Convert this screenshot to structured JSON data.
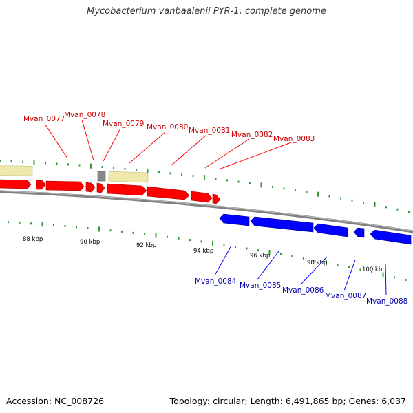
{
  "title": "Mycobacterium vanbaalenii PYR-1, complete genome",
  "accession": "Accession: NC_008726",
  "summary": "Topology: circular; Length: 6,491,865 bp; Genes: 6,037",
  "colors": {
    "forward_gene": "#ff0000",
    "reverse_gene": "#0000ff",
    "forward_label": "#cc0000",
    "reverse_label": "#0000aa",
    "feature_box": "#eee8aa",
    "backbone": "#808080",
    "tick_mark": "#339933"
  },
  "forward_genes": [
    "Mvan_0077",
    "Mvan_0078",
    "Mvan_0079",
    "Mvan_0080",
    "Mvan_0081",
    "Mvan_0082",
    "Mvan_0083"
  ],
  "reverse_genes": [
    "Mvan_0084",
    "Mvan_0085",
    "Mvan_0086",
    "Mvan_0087",
    "Mvan_0088"
  ],
  "kbp_labels": [
    "88 kbp",
    "90 kbp",
    "92 kbp",
    "94 kbp",
    "96 kbp",
    "98 kbp",
    "100 kbp"
  ]
}
